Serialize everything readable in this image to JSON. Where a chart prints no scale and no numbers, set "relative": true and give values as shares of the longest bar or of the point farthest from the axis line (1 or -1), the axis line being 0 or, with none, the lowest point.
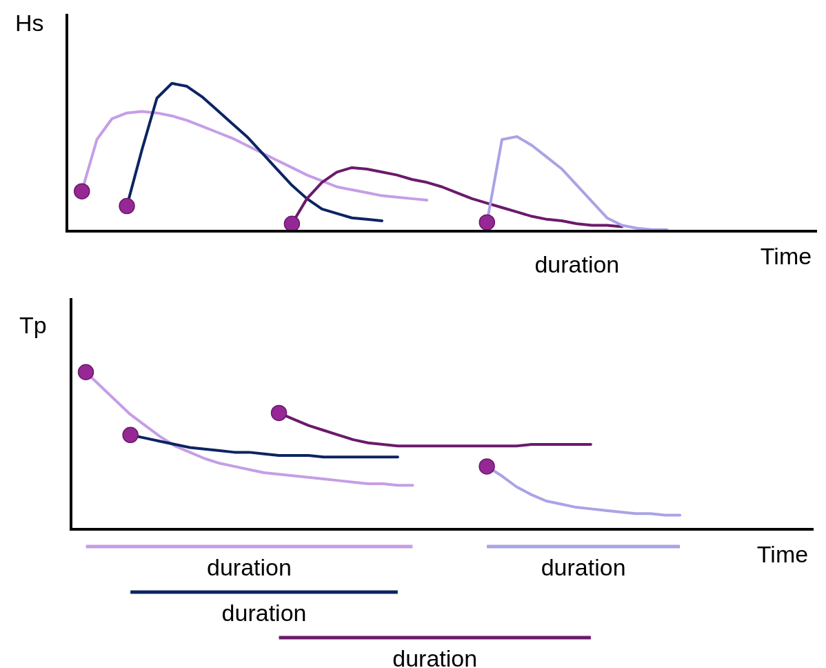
{
  "chart_data": [
    {
      "type": "line",
      "relative": true,
      "ylabel": "Hs",
      "xlabel": "Time",
      "annotations": [
        "duration"
      ],
      "categories": [
        null,
        null,
        null,
        null,
        null,
        null,
        null,
        null,
        null,
        null,
        null,
        null,
        null,
        null,
        null,
        null,
        null,
        null,
        null,
        null,
        null,
        null,
        null,
        null,
        null,
        null,
        null,
        null,
        null,
        null,
        null,
        null,
        null,
        null,
        null,
        null,
        null,
        null,
        null,
        null,
        null,
        null,
        null,
        null,
        null,
        null,
        null,
        null,
        null,
        null,
        null
      ],
      "series": [
        {
          "color": "#c59ee6",
          "values": [
            null,
            0.27,
            0.62,
            0.76,
            0.8,
            0.81,
            0.8,
            0.78,
            0.75,
            0.71,
            0.67,
            0.63,
            0.58,
            0.53,
            0.48,
            0.43,
            0.38,
            0.34,
            0.3,
            0.28,
            0.26,
            0.24,
            0.23,
            0.22,
            0.21,
            null,
            null,
            null,
            null,
            null,
            null,
            null,
            null,
            null,
            null,
            null,
            null,
            null,
            null,
            null,
            null,
            null,
            null,
            null,
            null,
            null,
            null,
            null,
            null,
            null,
            null
          ]
        },
        {
          "color": "#0b2463",
          "values": [
            null,
            null,
            null,
            null,
            0.17,
            0.55,
            0.9,
            1.0,
            0.98,
            0.91,
            0.82,
            0.73,
            0.64,
            0.53,
            0.42,
            0.31,
            0.22,
            0.15,
            0.12,
            0.09,
            0.08,
            0.07,
            null,
            null,
            null,
            null,
            null,
            null,
            null,
            null,
            null,
            null,
            null,
            null,
            null,
            null,
            null,
            null,
            null,
            null,
            null,
            null,
            null,
            null,
            null,
            null,
            null,
            null,
            null,
            null,
            null
          ]
        },
        {
          "color": "#6b1a6b",
          "values": [
            null,
            null,
            null,
            null,
            null,
            null,
            null,
            null,
            null,
            null,
            null,
            null,
            null,
            null,
            null,
            0.05,
            0.22,
            0.33,
            0.4,
            0.43,
            0.42,
            0.4,
            0.38,
            0.35,
            0.33,
            0.3,
            0.26,
            0.22,
            0.19,
            0.16,
            0.13,
            0.1,
            0.08,
            0.07,
            0.05,
            0.04,
            0.04,
            0.03,
            null,
            null,
            null,
            null,
            null,
            null,
            null,
            null,
            null,
            null,
            null,
            null,
            null
          ]
        },
        {
          "color": "#a9a3e6",
          "values": [
            null,
            null,
            null,
            null,
            null,
            null,
            null,
            null,
            null,
            null,
            null,
            null,
            null,
            null,
            null,
            null,
            null,
            null,
            null,
            null,
            null,
            null,
            null,
            null,
            null,
            null,
            null,
            null,
            0.06,
            0.62,
            0.64,
            0.58,
            0.5,
            0.42,
            0.31,
            0.2,
            0.09,
            0.04,
            0.02,
            0.01,
            0.01,
            null,
            null,
            null,
            null,
            null,
            null,
            null,
            null,
            null,
            null
          ]
        }
      ]
    },
    {
      "type": "line",
      "relative": true,
      "ylabel": "Tp",
      "xlabel": "Time",
      "annotations": [
        "duration",
        "duration",
        "duration",
        "duration"
      ],
      "categories": [
        null,
        null,
        null,
        null,
        null,
        null,
        null,
        null,
        null,
        null,
        null,
        null,
        null,
        null,
        null,
        null,
        null,
        null,
        null,
        null,
        null,
        null,
        null,
        null,
        null,
        null,
        null,
        null,
        null,
        null,
        null,
        null,
        null,
        null,
        null,
        null,
        null,
        null,
        null,
        null,
        null,
        null,
        null,
        null,
        null,
        null,
        null,
        null,
        null,
        null,
        null
      ],
      "series": [
        {
          "color": "#c59ee6",
          "values": [
            null,
            1.0,
            0.91,
            0.82,
            0.73,
            0.66,
            0.59,
            0.53,
            0.49,
            0.45,
            0.42,
            0.4,
            0.38,
            0.36,
            0.35,
            0.34,
            0.33,
            0.32,
            0.31,
            0.3,
            0.29,
            0.29,
            0.28,
            0.28,
            null,
            null,
            null,
            null,
            null,
            null,
            null,
            null,
            null,
            null,
            null,
            null,
            null,
            null,
            null,
            null,
            null,
            null,
            null,
            null,
            null,
            null,
            null,
            null,
            null,
            null,
            null
          ]
        },
        {
          "color": "#0b2463",
          "values": [
            null,
            null,
            null,
            null,
            0.6,
            0.58,
            0.56,
            0.54,
            0.52,
            0.51,
            0.5,
            0.49,
            0.49,
            0.48,
            0.47,
            0.47,
            0.47,
            0.46,
            0.46,
            0.46,
            0.46,
            0.46,
            0.46,
            null,
            null,
            null,
            null,
            null,
            null,
            null,
            null,
            null,
            null,
            null,
            null,
            null,
            null,
            null,
            null,
            null,
            null,
            null,
            null,
            null,
            null,
            null,
            null,
            null,
            null,
            null,
            null
          ]
        },
        {
          "color": "#6b1a6b",
          "values": [
            null,
            null,
            null,
            null,
            null,
            null,
            null,
            null,
            null,
            null,
            null,
            null,
            null,
            null,
            0.74,
            0.7,
            0.66,
            0.63,
            0.6,
            0.57,
            0.55,
            0.54,
            0.53,
            0.53,
            0.53,
            0.53,
            0.53,
            0.53,
            0.53,
            0.53,
            0.53,
            0.54,
            0.54,
            0.54,
            0.54,
            0.54,
            null,
            null,
            null,
            null,
            null,
            null,
            null,
            null,
            null,
            null,
            null,
            null,
            null,
            null,
            null
          ]
        },
        {
          "color": "#a9a3e6",
          "values": [
            null,
            null,
            null,
            null,
            null,
            null,
            null,
            null,
            null,
            null,
            null,
            null,
            null,
            null,
            null,
            null,
            null,
            null,
            null,
            null,
            null,
            null,
            null,
            null,
            null,
            null,
            null,
            null,
            0.4,
            0.34,
            0.27,
            0.22,
            0.18,
            0.16,
            0.14,
            0.13,
            0.12,
            0.11,
            0.1,
            0.1,
            0.09,
            0.09,
            null,
            null,
            null,
            null,
            null,
            null,
            null,
            null,
            null
          ]
        }
      ]
    }
  ]
}
